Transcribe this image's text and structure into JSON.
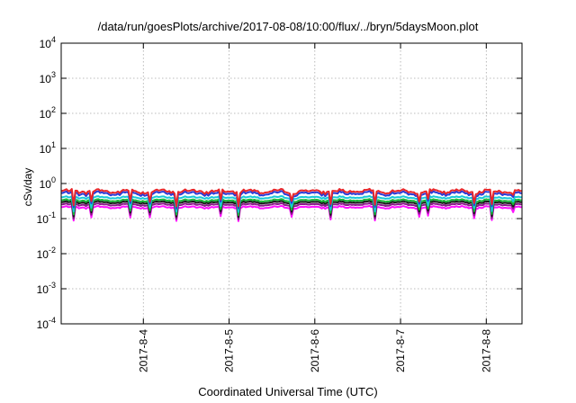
{
  "chart_data": {
    "type": "line",
    "title": "/data/run/goesPlots/archive/2017-08-08/10:00/flux/../bryn/5daysMoon.plot",
    "xlabel": "Coordinated Universal Time (UTC)",
    "ylabel": "cSv/day",
    "yscale": "log",
    "ylim": [
      0.0001,
      10000
    ],
    "y_tick_labels": [
      {
        "base": "10",
        "exp": "-4"
      },
      {
        "base": "10",
        "exp": "-3"
      },
      {
        "base": "10",
        "exp": "-2"
      },
      {
        "base": "10",
        "exp": "-1"
      },
      {
        "base": "10",
        "exp": "0"
      },
      {
        "base": "10",
        "exp": "1"
      },
      {
        "base": "10",
        "exp": "2"
      },
      {
        "base": "10",
        "exp": "3"
      },
      {
        "base": "10",
        "exp": "4"
      }
    ],
    "xlim": [
      "2017-08-03T01:00",
      "2017-08-08T10:00"
    ],
    "x_ticks": [
      "2017-08-04",
      "2017-08-05",
      "2017-08-06",
      "2017-08-07",
      "2017-08-08"
    ],
    "x_tick_labels": [
      "2017-8-4",
      "2017-8-5",
      "2017-8-6",
      "2017-8-7",
      "2017-8-8"
    ],
    "grid": true,
    "series": [
      {
        "color": "#e8262a",
        "base": 0.6
      },
      {
        "color": "#2a3bd8",
        "base": 0.52
      },
      {
        "color": "#18c8d8",
        "base": 0.4
      },
      {
        "color": "#18b838",
        "base": 0.33
      },
      {
        "color": "#1a1a1a",
        "base": 0.29
      },
      {
        "color": "#8a1a8a",
        "base": 0.25
      },
      {
        "color": "#ff10ff",
        "base": 0.21
      }
    ]
  }
}
